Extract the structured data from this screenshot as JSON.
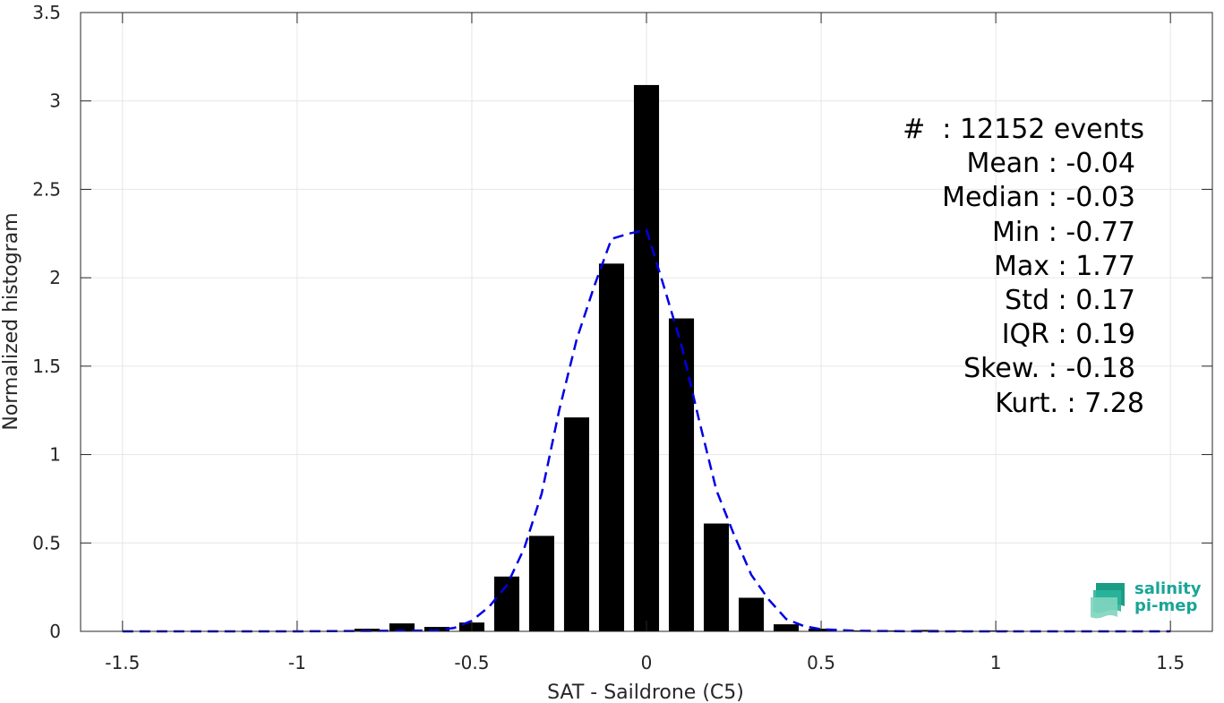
{
  "chart_data": {
    "type": "bar",
    "title": "",
    "xlabel": "SAT - Saildrone (C5)",
    "ylabel": "Normalized histogram",
    "xlim": [
      -1.62,
      1.62
    ],
    "ylim": [
      0,
      3.5
    ],
    "grid": true,
    "x_ticks": [
      -1.5,
      -1,
      -0.5,
      0,
      0.5,
      1,
      1.5
    ],
    "x_tick_labels": [
      "-1.5",
      "-1",
      "-0.5",
      "0",
      "0.5",
      "1",
      "1.5"
    ],
    "y_ticks": [
      0,
      0.5,
      1,
      1.5,
      2,
      2.5,
      3,
      3.5
    ],
    "y_tick_labels": [
      "0",
      "0.5",
      "1",
      "1.5",
      "2",
      "2.5",
      "3",
      "3.5"
    ],
    "bar_color": "#000000",
    "bars": {
      "x": [
        -1.5,
        -1.4,
        -1.3,
        -1.2,
        -1.1,
        -1.0,
        -0.9,
        -0.8,
        -0.7,
        -0.6,
        -0.5,
        -0.4,
        -0.3,
        -0.2,
        -0.1,
        0.0,
        0.1,
        0.2,
        0.3,
        0.4,
        0.5,
        0.6,
        0.7,
        0.8,
        0.9,
        1.0,
        1.1,
        1.2,
        1.3,
        1.4,
        1.5
      ],
      "values": [
        0,
        0,
        0,
        0,
        0,
        0,
        0,
        0.015,
        0.045,
        0.025,
        0.05,
        0.31,
        0.54,
        1.21,
        2.08,
        3.09,
        1.77,
        0.61,
        0.19,
        0.04,
        0.015,
        0.005,
        0.005,
        0.008,
        0.004,
        0.003,
        0,
        0,
        0,
        0,
        0
      ]
    },
    "fit_curve": {
      "style": "dashed",
      "color": "#0000e6",
      "x": [
        -1.5,
        -1.0,
        -0.6,
        -0.55,
        -0.5,
        -0.45,
        -0.4,
        -0.35,
        -0.3,
        -0.25,
        -0.2,
        -0.15,
        -0.1,
        -0.05,
        0.0,
        0.05,
        0.1,
        0.15,
        0.2,
        0.25,
        0.3,
        0.35,
        0.4,
        0.45,
        0.5,
        0.6,
        0.8,
        1.0,
        1.5
      ],
      "y": [
        0,
        0,
        0.005,
        0.02,
        0.06,
        0.14,
        0.26,
        0.47,
        0.78,
        1.25,
        1.65,
        1.95,
        2.22,
        2.25,
        2.27,
        1.95,
        1.62,
        1.2,
        0.8,
        0.55,
        0.32,
        0.18,
        0.07,
        0.03,
        0.012,
        0.003,
        0,
        0,
        0
      ]
    },
    "annotations": [
      "#  : 12152 events",
      "Mean : -0.04",
      "Median : -0.03",
      "Min : -0.77",
      "Max : 1.77",
      "Std : 0.17",
      "IQR : 0.19",
      "Skew. : -0.18",
      "Kurt. : 7.28"
    ]
  },
  "logo": {
    "line1": "salinity",
    "line2": "pi-mep",
    "color": "#1aa596"
  }
}
